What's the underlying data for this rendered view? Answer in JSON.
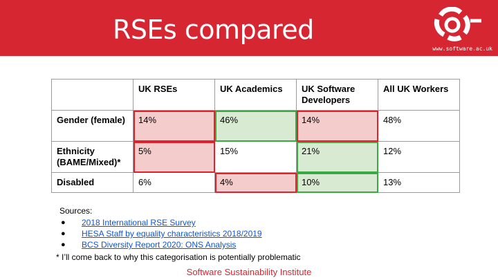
{
  "header": {
    "title": "RSEs compared",
    "logo_url": "www.software.ac.uk"
  },
  "colors": {
    "banner": "#d62632",
    "bad_fill": "#f4cccc",
    "bad_border": "#e0202a",
    "good_fill": "#d9ead3",
    "good_border": "#3aa845"
  },
  "table": {
    "columns": [
      "",
      "UK RSEs",
      "UK Academics",
      "UK Software Developers",
      "All UK Workers"
    ],
    "rows": [
      {
        "label": "Gender (female)",
        "cells": [
          {
            "value": "14%",
            "highlight": "bad"
          },
          {
            "value": "46%",
            "highlight": "good"
          },
          {
            "value": "14%",
            "highlight": "bad"
          },
          {
            "value": "48%",
            "highlight": ""
          }
        ]
      },
      {
        "label": "Ethnicity (BAME/Mixed)*",
        "cells": [
          {
            "value": "5%",
            "highlight": "bad"
          },
          {
            "value": "15%",
            "highlight": ""
          },
          {
            "value": "21%",
            "highlight": "good"
          },
          {
            "value": "12%",
            "highlight": ""
          }
        ]
      },
      {
        "label": "Disabled",
        "cells": [
          {
            "value": "6%",
            "highlight": ""
          },
          {
            "value": "4%",
            "highlight": "bad"
          },
          {
            "value": "10%",
            "highlight": "good"
          },
          {
            "value": "13%",
            "highlight": ""
          }
        ]
      }
    ]
  },
  "sources": {
    "heading": "Sources:",
    "items": [
      "2018 International RSE Survey",
      "HESA Staff by equality characteristics 2018/2019",
      "BCS Diversity Report 2020: ONS Analysis"
    ]
  },
  "footnote": "* I’ll come back to why this categorisation is potentially problematic",
  "footer": "Software Sustainability Institute"
}
